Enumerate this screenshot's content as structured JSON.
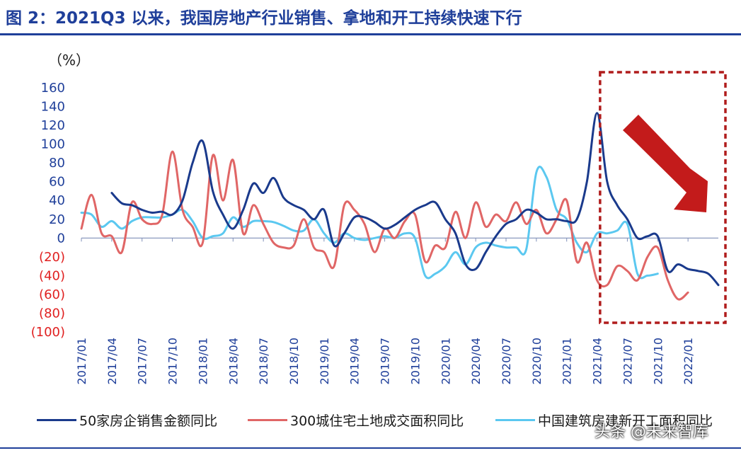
{
  "title": "图 2：2021Q3 以来，我国房地产行业销售、拿地和开工持续快速下行",
  "watermark": "头条 @未来智库",
  "colors": {
    "title": "#1f3f9a",
    "axis_text": "#1f3f9a",
    "negative_text": "#e02020",
    "series_sales": "#1a3a8c",
    "series_land": "#e06666",
    "series_starts": "#5bc8f0",
    "highlight_box": "#b01c1c",
    "arrow": "#c31b1b"
  },
  "chart_data": {
    "type": "line",
    "ylabel": "（%）",
    "ylim": [
      -100,
      160
    ],
    "yticks": [
      160,
      140,
      120,
      100,
      80,
      60,
      40,
      20,
      0,
      -20,
      -40,
      -60,
      -80,
      -100
    ],
    "ytick_labels": [
      "160",
      "140",
      "120",
      "100",
      "80",
      "60",
      "40",
      "20",
      "0",
      "(20)",
      "(40)",
      "(60)",
      "(80)",
      "(100)"
    ],
    "x_tick_labels": [
      "2017/01",
      "2017/04",
      "2017/07",
      "2017/10",
      "2018/01",
      "2018/04",
      "2018/07",
      "2018/10",
      "2019/01",
      "2019/04",
      "2019/07",
      "2019/10",
      "2020/01",
      "2020/04",
      "2020/07",
      "2020/10",
      "2021/01",
      "2021/04",
      "2021/07",
      "2021/10",
      "2022/01"
    ],
    "x_start": "2017/01",
    "x_end": "2022/04",
    "highlight_range": [
      "2021/05",
      "2022/04"
    ],
    "series": [
      {
        "name": "50家房企销售金额同比",
        "color": "#1a3a8c",
        "points": [
          [
            3,
            48
          ],
          [
            4,
            37
          ],
          [
            5,
            35
          ],
          [
            6,
            30
          ],
          [
            7,
            27
          ],
          [
            8,
            28
          ],
          [
            9,
            25
          ],
          [
            10,
            40
          ],
          [
            11,
            80
          ],
          [
            12,
            103
          ],
          [
            13,
            50
          ],
          [
            14,
            25
          ],
          [
            15,
            10
          ],
          [
            16,
            30
          ],
          [
            17,
            58
          ],
          [
            18,
            48
          ],
          [
            19,
            64
          ],
          [
            20,
            43
          ],
          [
            21,
            35
          ],
          [
            22,
            30
          ],
          [
            23,
            20
          ],
          [
            24,
            30
          ],
          [
            25,
            -8
          ],
          [
            26,
            5
          ],
          [
            27,
            22
          ],
          [
            28,
            22
          ],
          [
            29,
            17
          ],
          [
            30,
            10
          ],
          [
            31,
            14
          ],
          [
            32,
            22
          ],
          [
            33,
            30
          ],
          [
            34,
            35
          ],
          [
            35,
            38
          ],
          [
            36,
            20
          ],
          [
            37,
            5
          ],
          [
            38,
            -28
          ],
          [
            39,
            -33
          ],
          [
            40,
            -15
          ],
          [
            41,
            2
          ],
          [
            42,
            15
          ],
          [
            43,
            20
          ],
          [
            44,
            30
          ],
          [
            45,
            27
          ],
          [
            46,
            20
          ],
          [
            47,
            20
          ],
          [
            48,
            18
          ],
          [
            49,
            20
          ],
          [
            50,
            60
          ],
          [
            51,
            133
          ],
          [
            52,
            60
          ],
          [
            53,
            35
          ],
          [
            54,
            20
          ],
          [
            55,
            0
          ],
          [
            56,
            2
          ],
          [
            57,
            2
          ],
          [
            58,
            -35
          ],
          [
            59,
            -28
          ],
          [
            60,
            -33
          ],
          [
            61,
            -35
          ],
          [
            62,
            -38
          ],
          [
            63,
            -50
          ]
        ]
      },
      {
        "name": "300城住宅土地成交面积同比",
        "color": "#e06666",
        "points": [
          [
            0,
            10
          ],
          [
            1,
            46
          ],
          [
            2,
            5
          ],
          [
            3,
            2
          ],
          [
            4,
            -15
          ],
          [
            5,
            38
          ],
          [
            6,
            20
          ],
          [
            7,
            15
          ],
          [
            8,
            25
          ],
          [
            9,
            92
          ],
          [
            10,
            30
          ],
          [
            11,
            12
          ],
          [
            12,
            -5
          ],
          [
            13,
            88
          ],
          [
            14,
            40
          ],
          [
            15,
            83
          ],
          [
            16,
            5
          ],
          [
            17,
            35
          ],
          [
            18,
            15
          ],
          [
            19,
            -5
          ],
          [
            20,
            -10
          ],
          [
            21,
            -8
          ],
          [
            22,
            20
          ],
          [
            23,
            -10
          ],
          [
            24,
            -15
          ],
          [
            25,
            -30
          ],
          [
            26,
            35
          ],
          [
            27,
            30
          ],
          [
            28,
            15
          ],
          [
            29,
            -15
          ],
          [
            30,
            10
          ],
          [
            31,
            0
          ],
          [
            32,
            18
          ],
          [
            33,
            25
          ],
          [
            34,
            -25
          ],
          [
            35,
            -8
          ],
          [
            36,
            -10
          ],
          [
            37,
            28
          ],
          [
            38,
            0
          ],
          [
            39,
            38
          ],
          [
            40,
            12
          ],
          [
            41,
            25
          ],
          [
            42,
            18
          ],
          [
            43,
            38
          ],
          [
            44,
            15
          ],
          [
            45,
            30
          ],
          [
            46,
            5
          ],
          [
            47,
            20
          ],
          [
            48,
            40
          ],
          [
            49,
            -25
          ],
          [
            50,
            -5
          ],
          [
            51,
            -45
          ],
          [
            52,
            -50
          ],
          [
            53,
            -30
          ],
          [
            54,
            -35
          ],
          [
            55,
            -45
          ],
          [
            56,
            -20
          ],
          [
            57,
            -10
          ],
          [
            58,
            -45
          ],
          [
            59,
            -65
          ],
          [
            60,
            -58
          ]
        ]
      },
      {
        "name": "中国建筑房建新开工面积同比",
        "color": "#5bc8f0",
        "points": [
          [
            0,
            27
          ],
          [
            1,
            25
          ],
          [
            2,
            12
          ],
          [
            3,
            18
          ],
          [
            4,
            10
          ],
          [
            5,
            18
          ],
          [
            6,
            22
          ],
          [
            7,
            22
          ],
          [
            8,
            22
          ],
          [
            9,
            25
          ],
          [
            10,
            30
          ],
          [
            11,
            18
          ],
          [
            12,
            0
          ],
          [
            13,
            2
          ],
          [
            14,
            5
          ],
          [
            15,
            22
          ],
          [
            16,
            12
          ],
          [
            17,
            18
          ],
          [
            18,
            18
          ],
          [
            19,
            17
          ],
          [
            20,
            13
          ],
          [
            21,
            8
          ],
          [
            22,
            8
          ],
          [
            23,
            20
          ],
          [
            24,
            5
          ],
          [
            25,
            -5
          ],
          [
            26,
            5
          ],
          [
            27,
            0
          ],
          [
            28,
            -2
          ],
          [
            29,
            0
          ],
          [
            30,
            2
          ],
          [
            31,
            0
          ],
          [
            32,
            5
          ],
          [
            33,
            0
          ],
          [
            34,
            -40
          ],
          [
            35,
            -38
          ],
          [
            36,
            -30
          ],
          [
            37,
            -15
          ],
          [
            38,
            -28
          ],
          [
            39,
            -10
          ],
          [
            40,
            -5
          ],
          [
            41,
            -8
          ],
          [
            42,
            -10
          ],
          [
            43,
            -10
          ],
          [
            44,
            -12
          ],
          [
            45,
            70
          ],
          [
            46,
            65
          ],
          [
            47,
            30
          ],
          [
            48,
            20
          ],
          [
            49,
            -5
          ],
          [
            50,
            -15
          ],
          [
            51,
            5
          ],
          [
            52,
            5
          ],
          [
            53,
            8
          ],
          [
            54,
            15
          ],
          [
            55,
            -38
          ],
          [
            56,
            -40
          ],
          [
            57,
            -38
          ]
        ]
      }
    ]
  }
}
